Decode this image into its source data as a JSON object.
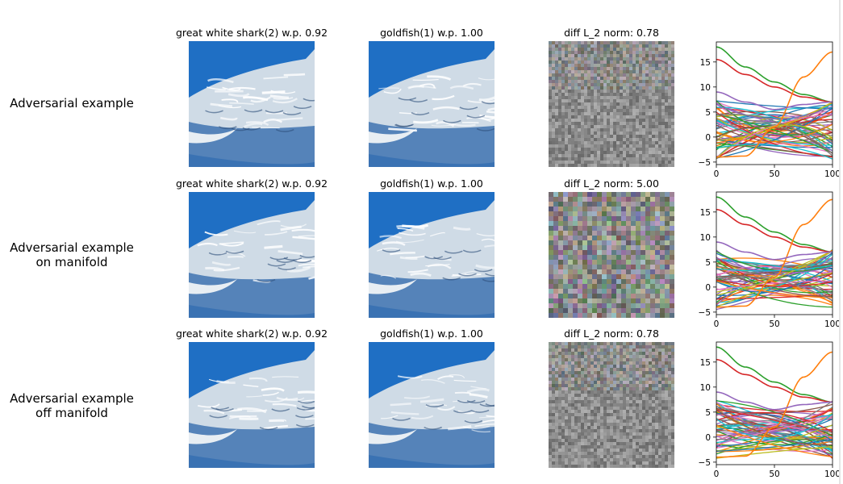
{
  "rows": [
    {
      "label_line1": "Adversarial example",
      "label_line2": "",
      "caption_original": "great white shark(2) w.p. 0.92",
      "caption_adversarial": "goldfish(1) w.p. 1.00",
      "caption_diff": "diff L_2 norm: 0.78",
      "image_original": "great white shark photo (original)",
      "image_adversarial": "great white shark photo (adversarial)",
      "image_diff": "grey noise pattern (difference image)"
    },
    {
      "label_line1": "Adversarial example",
      "label_line2": "on manifold",
      "caption_original": "great white shark(2) w.p. 0.92",
      "caption_adversarial": "goldfish(1) w.p. 1.00",
      "caption_diff": "diff L_2 norm: 5.00",
      "image_original": "great white shark photo (original)",
      "image_adversarial": "great white shark photo (adversarial)",
      "image_diff": "coloured blotchy noise pattern (difference image)"
    },
    {
      "label_line1": "Adversarial example",
      "label_line2": "off manifold",
      "caption_original": "great white shark(2) w.p. 0.92",
      "caption_adversarial": "goldfish(1) w.p. 1.00",
      "caption_diff": "diff L_2 norm: 0.78",
      "image_original": "great white shark photo (original)",
      "image_adversarial": "great white shark photo (adversarial)",
      "image_diff": "grey noise pattern (difference image)"
    }
  ],
  "chart_data": [
    {
      "type": "line",
      "xlim": [
        0,
        100
      ],
      "ylim": [
        -5.5,
        19
      ],
      "xticks": [
        0,
        50,
        100
      ],
      "yticks": [
        -5,
        0,
        5,
        10,
        15
      ],
      "grid": false,
      "legend": "none",
      "highlighted_series": [
        {
          "color": "#2ca02c",
          "x": [
            0,
            25,
            50,
            75,
            100
          ],
          "y": [
            18,
            14,
            11,
            8.5,
            7
          ]
        },
        {
          "color": "#d62728",
          "x": [
            0,
            25,
            50,
            75,
            100
          ],
          "y": [
            15.5,
            12.5,
            10,
            8,
            7
          ]
        },
        {
          "color": "#ff7f0e",
          "x": [
            0,
            25,
            50,
            75,
            100
          ],
          "y": [
            -4,
            -3.8,
            2,
            12,
            17
          ]
        },
        {
          "color": "#9467bd",
          "x": [
            0,
            25,
            50,
            75,
            100
          ],
          "y": [
            9,
            7,
            5.5,
            6.5,
            7
          ]
        }
      ],
      "bundle": {
        "count": 60,
        "y_range": [
          -4.5,
          7.5
        ],
        "description": "many overlapping colored series"
      }
    },
    {
      "type": "line",
      "xlim": [
        0,
        100
      ],
      "ylim": [
        -5.5,
        19
      ],
      "xticks": [
        0,
        50,
        100
      ],
      "yticks": [
        -5,
        0,
        5,
        10,
        15
      ],
      "grid": false,
      "legend": "none",
      "highlighted_series": [
        {
          "color": "#2ca02c",
          "x": [
            0,
            25,
            50,
            75,
            100
          ],
          "y": [
            18,
            14,
            11,
            8.5,
            7
          ]
        },
        {
          "color": "#d62728",
          "x": [
            0,
            25,
            50,
            75,
            100
          ],
          "y": [
            15.5,
            12.5,
            10,
            8,
            7
          ]
        },
        {
          "color": "#ff7f0e",
          "x": [
            0,
            25,
            50,
            75,
            100
          ],
          "y": [
            -4,
            -3.8,
            2,
            12.5,
            17.5
          ]
        },
        {
          "color": "#9467bd",
          "x": [
            0,
            25,
            50,
            75,
            100
          ],
          "y": [
            9,
            7,
            5.5,
            6.5,
            7
          ]
        }
      ],
      "bundle": {
        "count": 60,
        "y_range": [
          -4.5,
          7.5
        ],
        "description": "many overlapping colored series"
      }
    },
    {
      "type": "line",
      "xlim": [
        0,
        100
      ],
      "ylim": [
        -5.5,
        19
      ],
      "xticks": [
        0,
        50,
        100
      ],
      "yticks": [
        -5,
        0,
        5,
        10,
        15
      ],
      "grid": false,
      "legend": "none",
      "highlighted_series": [
        {
          "color": "#2ca02c",
          "x": [
            0,
            25,
            50,
            75,
            100
          ],
          "y": [
            18,
            14,
            11,
            8.5,
            7
          ]
        },
        {
          "color": "#d62728",
          "x": [
            0,
            25,
            50,
            75,
            100
          ],
          "y": [
            15.5,
            12.5,
            10,
            8,
            7
          ]
        },
        {
          "color": "#ff7f0e",
          "x": [
            0,
            25,
            50,
            75,
            100
          ],
          "y": [
            -4,
            -3.8,
            2,
            12,
            17
          ]
        },
        {
          "color": "#9467bd",
          "x": [
            0,
            25,
            50,
            75,
            100
          ],
          "y": [
            9,
            7,
            5.5,
            6.5,
            7
          ]
        }
      ],
      "bundle": {
        "count": 60,
        "y_range": [
          -4.5,
          7.5
        ],
        "description": "many overlapping colored series"
      }
    }
  ],
  "colors": {
    "ocean": "#1f6fc4",
    "shark_body": "#cfdbe6",
    "diff_grey": "#9a9a9a",
    "series_palette": [
      "#1f77b4",
      "#ff7f0e",
      "#2ca02c",
      "#d62728",
      "#9467bd",
      "#8c564b",
      "#e377c2",
      "#7f7f7f",
      "#bcbd22",
      "#17becf"
    ]
  }
}
